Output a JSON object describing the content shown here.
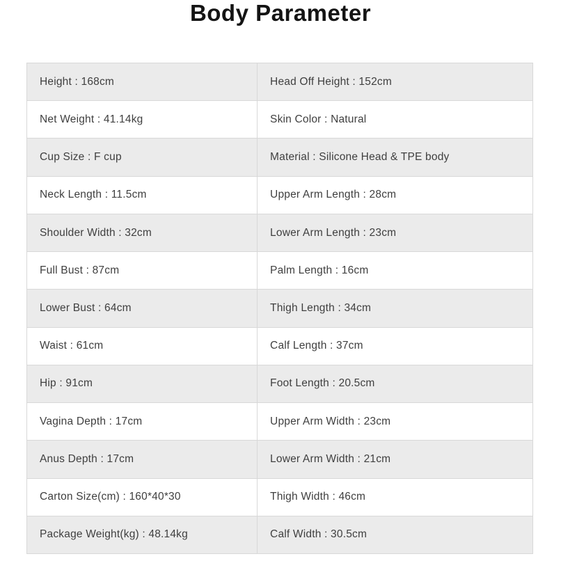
{
  "title": "Body Parameter",
  "colors": {
    "row_alt_bg": "#ebebeb",
    "row_bg": "#ffffff",
    "border": "#d8d8d8",
    "text": "#3f3f3f",
    "title": "#141414"
  },
  "table": {
    "rows": [
      {
        "left": "Height : 168cm",
        "right": "Head Off Height : 152cm"
      },
      {
        "left": "Net Weight : 41.14kg",
        "right": "Skin Color : Natural"
      },
      {
        "left": "Cup Size : F cup",
        "right": "Material : Silicone Head & TPE body"
      },
      {
        "left": "Neck Length : 11.5cm",
        "right": "Upper Arm Length : 28cm"
      },
      {
        "left": "Shoulder Width : 32cm",
        "right": "Lower Arm Length : 23cm"
      },
      {
        "left": "Full Bust : 87cm",
        "right": "Palm Length : 16cm"
      },
      {
        "left": "Lower Bust : 64cm",
        "right": "Thigh Length : 34cm"
      },
      {
        "left": "Waist : 61cm",
        "right": "Calf Length : 37cm"
      },
      {
        "left": "Hip : 91cm",
        "right": "Foot Length : 20.5cm"
      },
      {
        "left": "Vagina Depth : 17cm",
        "right": "Upper Arm Width : 23cm"
      },
      {
        "left": "Anus Depth : 17cm",
        "right": "Lower Arm Width : 21cm"
      },
      {
        "left": "Carton Size(cm) : 160*40*30",
        "right": "Thigh Width : 46cm"
      },
      {
        "left": "Package Weight(kg) : 48.14kg",
        "right": "Calf Width : 30.5cm"
      }
    ]
  }
}
